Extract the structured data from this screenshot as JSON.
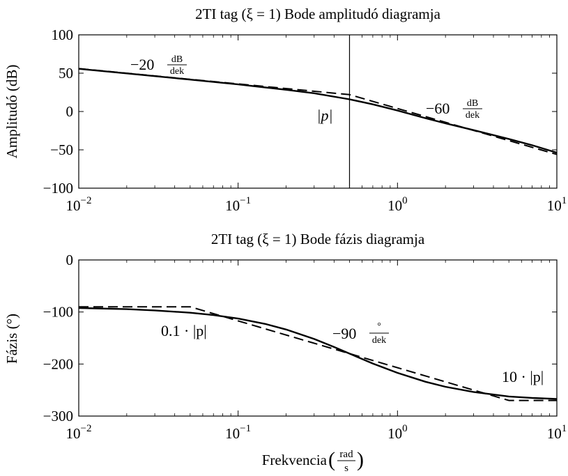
{
  "chart_data": [
    {
      "type": "line",
      "title": "2TI tag (ξ = 1) Bode amplitudó diagramja",
      "xlabel": "",
      "ylabel": "Amplitudó (dB)",
      "xscale": "log",
      "xlim": [
        0.01,
        10
      ],
      "ylim": [
        -100,
        100
      ],
      "x_ticks": [
        {
          "value": 0.01,
          "base": "10",
          "exp": "−2"
        },
        {
          "value": 0.1,
          "base": "10",
          "exp": "−1"
        },
        {
          "value": 1,
          "base": "10",
          "exp": "0"
        },
        {
          "value": 10,
          "base": "10",
          "exp": "1"
        }
      ],
      "y_ticks": [
        100,
        50,
        0,
        -50,
        -100
      ],
      "series": [
        {
          "style": "solid",
          "x": [
            0.01,
            0.02,
            0.05,
            0.1,
            0.2,
            0.3,
            0.5,
            0.7,
            1,
            1.5,
            2,
            3,
            5,
            7,
            10
          ],
          "y": [
            55.7,
            49.7,
            41.6,
            35.4,
            28.4,
            23.8,
            15.9,
            9.4,
            1.3,
            -8.7,
            -15.4,
            -24.3,
            -35.8,
            -44.0,
            -53.7
          ]
        },
        {
          "style": "dashed",
          "x": [
            0.01,
            0.5,
            10
          ],
          "y": [
            56.0,
            22.0,
            -56.0
          ]
        }
      ],
      "vline": {
        "x": 0.5
      },
      "annotations": [
        {
          "id": "slope_low",
          "text": "−20",
          "frac_num": "dB",
          "frac_den": "dek"
        },
        {
          "id": "pole",
          "text": "|p|"
        },
        {
          "id": "slope_high",
          "text": "−60",
          "frac_num": "dB",
          "frac_den": "dek"
        }
      ]
    },
    {
      "type": "line",
      "title": "2TI tag (ξ = 1) Bode fázis diagramja",
      "xlabel": "Frekvencia",
      "xlabel_unit_num": "rad",
      "xlabel_unit_den": "s",
      "ylabel": "Fázis (°)",
      "xscale": "log",
      "xlim": [
        0.01,
        10
      ],
      "ylim": [
        -300,
        0
      ],
      "x_ticks": [
        {
          "value": 0.01,
          "base": "10",
          "exp": "−2"
        },
        {
          "value": 0.1,
          "base": "10",
          "exp": "−1"
        },
        {
          "value": 1,
          "base": "10",
          "exp": "0"
        },
        {
          "value": 10,
          "base": "10",
          "exp": "1"
        }
      ],
      "y_ticks": [
        0,
        -100,
        -200,
        -300
      ],
      "series": [
        {
          "style": "solid",
          "x": [
            0.01,
            0.02,
            0.03,
            0.05,
            0.07,
            0.1,
            0.15,
            0.2,
            0.3,
            0.4,
            0.5,
            0.7,
            1,
            1.5,
            2,
            3,
            5,
            7,
            10
          ],
          "y": [
            -92.3,
            -94.6,
            -96.9,
            -101.4,
            -105.9,
            -112.6,
            -123.4,
            -133.6,
            -151.9,
            -167.3,
            -180,
            -199.0,
            -216.9,
            -234.1,
            -243.7,
            -253.6,
            -262.3,
            -265.2,
            -267.1
          ]
        },
        {
          "style": "dashed",
          "x": [
            0.01,
            0.05,
            5,
            10
          ],
          "y": [
            -90,
            -90,
            -270,
            -270
          ]
        }
      ],
      "annotations": [
        {
          "id": "low_corner",
          "text": "0.1 · |p|"
        },
        {
          "id": "slope",
          "text": "−90",
          "frac_num": "°",
          "frac_den": "dek"
        },
        {
          "id": "high_corner",
          "text": "10 · |p|"
        }
      ]
    }
  ]
}
